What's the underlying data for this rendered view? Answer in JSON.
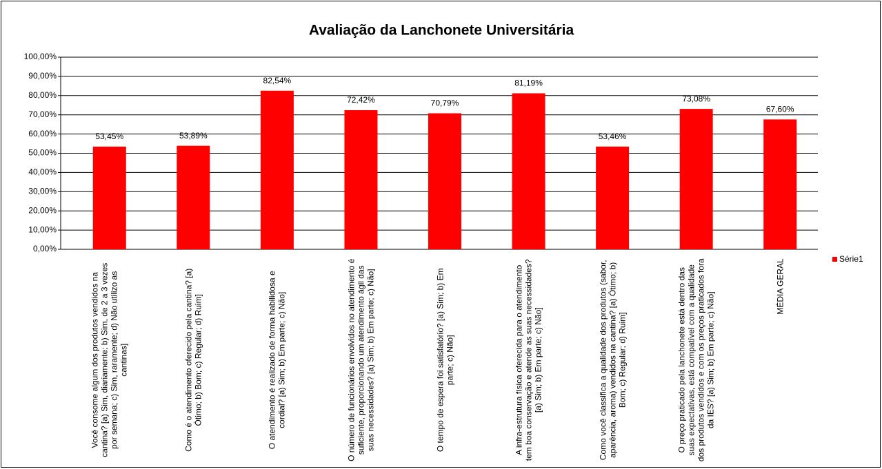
{
  "chart_data": {
    "type": "bar",
    "title": "Avaliação da Lanchonete Universitária",
    "categories": [
      "Você consome algum dos produtos vendidos na cantina? [a) Sim, diariamente; b) Sim, de 2 a 3 vezes por semana; c) Sim, raramente; d) Não utilizo as cantinas]",
      "Como é o atendimento oferecido pela cantina? [a) Ótimo; b) Bom; c) Regular; d) Ruim]",
      "O atendimento é realizado de forma habilidosa e cordial? [a) Sim; b) Em parte; c) Não]",
      "O número de funcionários envolvidos no atendimento é suficiente, proporcionando um atendimento ágil das suas necessidades? [a) Sim; b) Em parte; c) Não]",
      "O tempo de espera foi satisfatório? [a) Sim; b) Em parte; c) Não]",
      "A infra-estrutura física oferecida para o atendimento tem boa conservação e atende as suas necessidades? [a) Sim; b) Em parte; c) Não]",
      "Como você classifica a qualidade dos produtos (sabor, aparência, aroma) vendidos na cantina? [a) Ótimo; b) Bom; c) Regular; d) Ruim]",
      "O preço praticado pela lanchonete está dentro das suas expectativas, está compatível com a qualidade dos produtos vendidos e com os preços praticados fora da IES? [a) Sim; b) Em parte; c) Não]",
      "MÉDIA GERAL"
    ],
    "series": [
      {
        "name": "Série1",
        "color": "#ff0000",
        "values": [
          53.45,
          53.89,
          82.54,
          72.42,
          70.79,
          81.19,
          53.46,
          73.08,
          67.6
        ],
        "value_labels": [
          "53,45%",
          "53,89%",
          "82,54%",
          "72,42%",
          "70,79%",
          "81,19%",
          "53,46%",
          "73,08%",
          "67,60%"
        ]
      }
    ],
    "ylim": [
      0,
      100
    ],
    "yticks": [
      {
        "value": 0,
        "label": "0,00%"
      },
      {
        "value": 10,
        "label": "10,00%"
      },
      {
        "value": 20,
        "label": "20,00%"
      },
      {
        "value": 30,
        "label": "30,00%"
      },
      {
        "value": 40,
        "label": "40,00%"
      },
      {
        "value": 50,
        "label": "50,00%"
      },
      {
        "value": 60,
        "label": "60,00%"
      },
      {
        "value": 70,
        "label": "70,00%"
      },
      {
        "value": 80,
        "label": "80,00%"
      },
      {
        "value": 90,
        "label": "90,00%"
      },
      {
        "value": 100,
        "label": "100,00%"
      }
    ],
    "grid": true,
    "legend": "right"
  }
}
